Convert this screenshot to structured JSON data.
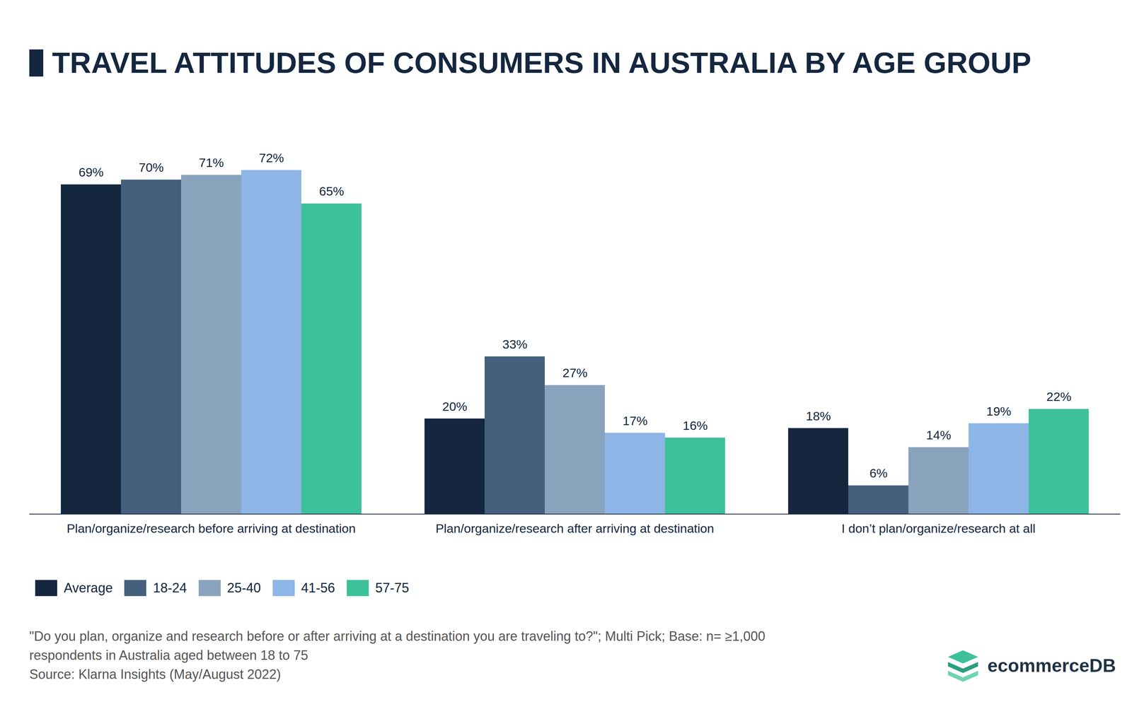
{
  "chart_data": {
    "type": "bar",
    "title": "TRAVEL ATTITUDES OF CONSUMERS IN AUSTRALIA BY AGE GROUP",
    "categories": [
      "Plan/organize/research before arriving at destination",
      "Plan/organize/research after arriving at destination",
      "I don’t plan/organize/research at all"
    ],
    "series": [
      {
        "name": "Average",
        "color": "#14273f",
        "values": [
          69,
          20,
          18
        ],
        "value_labels": [
          "69%",
          "20%",
          "18%"
        ]
      },
      {
        "name": "18-24",
        "color": "#45607c",
        "values": [
          70,
          33,
          6
        ],
        "value_labels": [
          "70%",
          "33%",
          "6%"
        ]
      },
      {
        "name": "25-40",
        "color": "#8aa3bd",
        "values": [
          71,
          27,
          14
        ],
        "value_labels": [
          "71%",
          "27%",
          "14%"
        ]
      },
      {
        "name": "41-56",
        "color": "#8db5e5",
        "values": [
          72,
          17,
          19
        ],
        "value_labels": [
          "72%",
          "17%",
          "19%"
        ]
      },
      {
        "name": "57-75",
        "color": "#3dc19b",
        "values": [
          65,
          16,
          22
        ],
        "value_labels": [
          "65%",
          "16%",
          "22%"
        ]
      }
    ],
    "ylim": [
      0,
      80
    ],
    "grid": false,
    "legend": "bottom-left",
    "data_labels": true,
    "tick_labels": "x",
    "notes": [
      "\"Do you plan, organize and research before or after arriving at a destination you are traveling to?\"; Multi Pick; Base: n= ≥1,000",
      "respondents in Australia aged between 18 to 75"
    ],
    "source": "Source: Klarna Insights (May/August 2022)",
    "logo": "ecommerceDB"
  }
}
